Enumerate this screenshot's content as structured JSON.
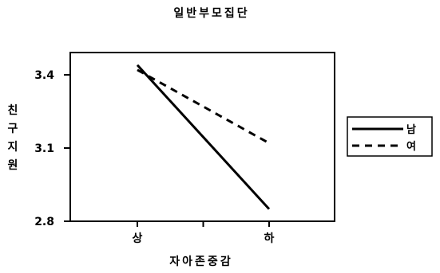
{
  "chart_data": {
    "type": "line",
    "title": "일반부모집단",
    "xlabel": "자아존중감",
    "ylabel": "친구지원",
    "categories": [
      "상",
      "하"
    ],
    "y_ticks": [
      "3.4",
      "3.1",
      "2.8"
    ],
    "ylim": [
      2.8,
      3.5
    ],
    "grid": false,
    "legend_position": "right",
    "series": [
      {
        "name": "남",
        "values": [
          3.44,
          2.85
        ],
        "line_style": "solid",
        "color": "#000000"
      },
      {
        "name": "여",
        "values": [
          3.42,
          3.12
        ],
        "line_style": "dashed",
        "color": "#000000"
      }
    ]
  }
}
